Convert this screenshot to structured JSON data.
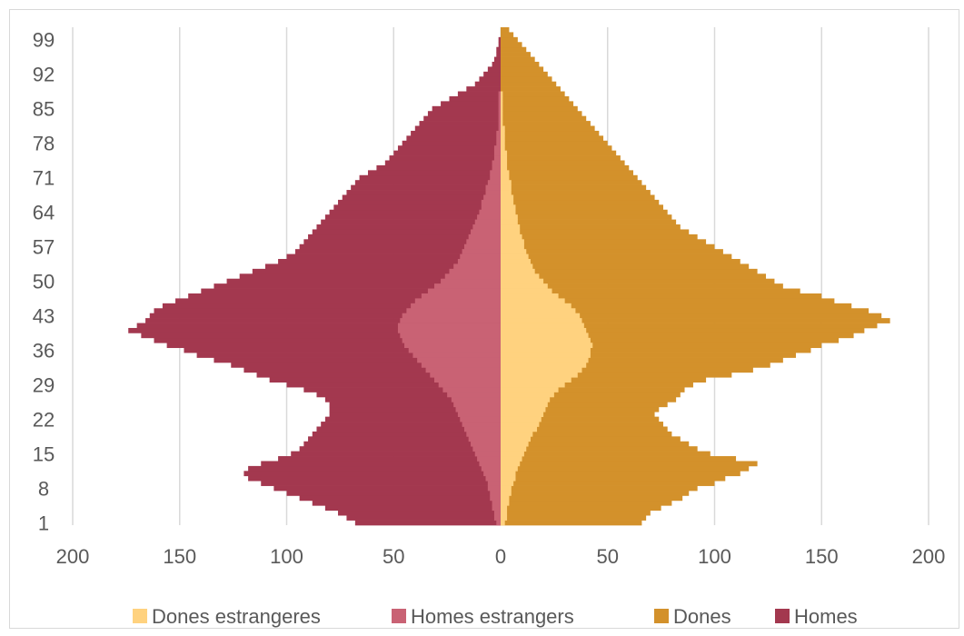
{
  "chart_data": {
    "type": "bar",
    "orientation": "horizontal",
    "subtype": "population-pyramid",
    "title": "",
    "xlabel": "",
    "ylabel": "",
    "x_ticks": [
      "200",
      "150",
      "100",
      "50",
      "0",
      "50",
      "100",
      "150",
      "200"
    ],
    "y_ticks": [
      "99",
      "92",
      "85",
      "78",
      "71",
      "64",
      "57",
      "50",
      "43",
      "36",
      "29",
      "22",
      "15",
      "8",
      "1"
    ],
    "xlim": [
      -200,
      200
    ],
    "ylim": [
      1,
      101
    ],
    "grid": "vertical",
    "legend_position": "bottom",
    "categories": [
      1,
      2,
      3,
      4,
      5,
      6,
      7,
      8,
      9,
      10,
      11,
      12,
      13,
      14,
      15,
      16,
      17,
      18,
      19,
      20,
      21,
      22,
      23,
      24,
      25,
      26,
      27,
      28,
      29,
      30,
      31,
      32,
      33,
      34,
      35,
      36,
      37,
      38,
      39,
      40,
      41,
      42,
      43,
      44,
      45,
      46,
      47,
      48,
      49,
      50,
      51,
      52,
      53,
      54,
      55,
      56,
      57,
      58,
      59,
      60,
      61,
      62,
      63,
      64,
      65,
      66,
      67,
      68,
      69,
      70,
      71,
      72,
      73,
      74,
      75,
      76,
      77,
      78,
      79,
      80,
      81,
      82,
      83,
      84,
      85,
      86,
      87,
      88,
      89,
      90,
      91,
      92,
      93,
      94,
      95,
      96,
      97,
      98,
      99,
      100,
      101
    ],
    "series": [
      {
        "name": "Dones estrangeres",
        "color": "#FFD27F",
        "values": [
          2,
          3,
          3,
          3,
          4,
          4,
          5,
          5,
          6,
          7,
          7,
          8,
          9,
          10,
          11,
          12,
          13,
          14,
          15,
          17,
          18,
          19,
          20,
          21,
          22,
          23,
          25,
          27,
          30,
          33,
          36,
          38,
          40,
          41,
          42,
          42,
          43,
          42,
          41,
          40,
          39,
          38,
          37,
          35,
          33,
          30,
          27,
          24,
          22,
          20,
          18,
          16,
          15,
          14,
          13,
          12,
          11,
          11,
          10,
          9,
          9,
          8,
          8,
          7,
          7,
          6,
          6,
          5,
          5,
          5,
          4,
          4,
          3,
          3,
          3,
          3,
          2,
          2,
          2,
          2,
          2,
          1,
          1,
          1,
          1,
          1,
          1,
          1,
          0,
          0,
          0,
          0,
          0,
          0,
          0,
          0,
          0,
          0,
          0,
          0,
          0
        ]
      },
      {
        "name": "Homes estrangers",
        "color": "#C96274",
        "values": [
          -2,
          -3,
          -3,
          -4,
          -4,
          -5,
          -5,
          -6,
          -6,
          -7,
          -8,
          -9,
          -10,
          -11,
          -12,
          -13,
          -14,
          -15,
          -16,
          -17,
          -18,
          -19,
          -20,
          -21,
          -22,
          -23,
          -25,
          -27,
          -29,
          -31,
          -33,
          -35,
          -37,
          -39,
          -41,
          -43,
          -45,
          -46,
          -47,
          -48,
          -48,
          -47,
          -46,
          -44,
          -42,
          -40,
          -37,
          -34,
          -31,
          -28,
          -26,
          -24,
          -22,
          -20,
          -19,
          -18,
          -17,
          -16,
          -15,
          -14,
          -13,
          -12,
          -11,
          -10,
          -9,
          -9,
          -8,
          -7,
          -7,
          -6,
          -5,
          -5,
          -4,
          -4,
          -3,
          -3,
          -3,
          -2,
          -2,
          -2,
          -1,
          -1,
          -1,
          -1,
          -1,
          -1,
          -1,
          -1,
          0,
          0,
          0,
          0,
          0,
          0,
          0,
          0,
          0,
          0,
          0,
          0,
          0
        ]
      },
      {
        "name": "Dones",
        "color": "#D3912B",
        "values": [
          66,
          68,
          70,
          75,
          80,
          85,
          88,
          92,
          100,
          105,
          112,
          116,
          120,
          110,
          98,
          92,
          88,
          84,
          80,
          78,
          76,
          74,
          72,
          74,
          78,
          82,
          84,
          86,
          90,
          96,
          108,
          118,
          126,
          132,
          138,
          145,
          150,
          158,
          165,
          170,
          176,
          182,
          178,
          172,
          164,
          156,
          150,
          140,
          132,
          128,
          124,
          120,
          116,
          112,
          108,
          104,
          100,
          96,
          92,
          88,
          84,
          82,
          80,
          78,
          76,
          74,
          72,
          70,
          68,
          66,
          64,
          62,
          60,
          58,
          56,
          54,
          52,
          50,
          48,
          46,
          44,
          42,
          40,
          38,
          36,
          34,
          32,
          30,
          28,
          26,
          24,
          22,
          20,
          18,
          16,
          14,
          12,
          10,
          8,
          6,
          4
        ]
      },
      {
        "name": "Homes",
        "color": "#A3384F",
        "values": [
          -68,
          -72,
          -76,
          -82,
          -88,
          -94,
          -100,
          -106,
          -112,
          -118,
          -120,
          -118,
          -112,
          -104,
          -98,
          -94,
          -92,
          -90,
          -88,
          -86,
          -84,
          -82,
          -80,
          -80,
          -80,
          -82,
          -86,
          -92,
          -100,
          -108,
          -114,
          -120,
          -126,
          -134,
          -142,
          -148,
          -156,
          -162,
          -168,
          -174,
          -170,
          -166,
          -164,
          -162,
          -158,
          -152,
          -146,
          -140,
          -134,
          -128,
          -122,
          -116,
          -110,
          -104,
          -100,
          -96,
          -94,
          -92,
          -90,
          -88,
          -86,
          -84,
          -82,
          -80,
          -78,
          -76,
          -74,
          -72,
          -70,
          -68,
          -66,
          -62,
          -58,
          -54,
          -52,
          -50,
          -48,
          -46,
          -44,
          -42,
          -40,
          -38,
          -36,
          -34,
          -32,
          -28,
          -24,
          -20,
          -16,
          -12,
          -10,
          -8,
          -6,
          -4,
          -3,
          -2,
          -2,
          -1,
          -1,
          0,
          0
        ]
      }
    ],
    "legend_order": [
      "Dones estrangeres",
      "Homes estrangers",
      "Dones",
      "Homes"
    ]
  }
}
